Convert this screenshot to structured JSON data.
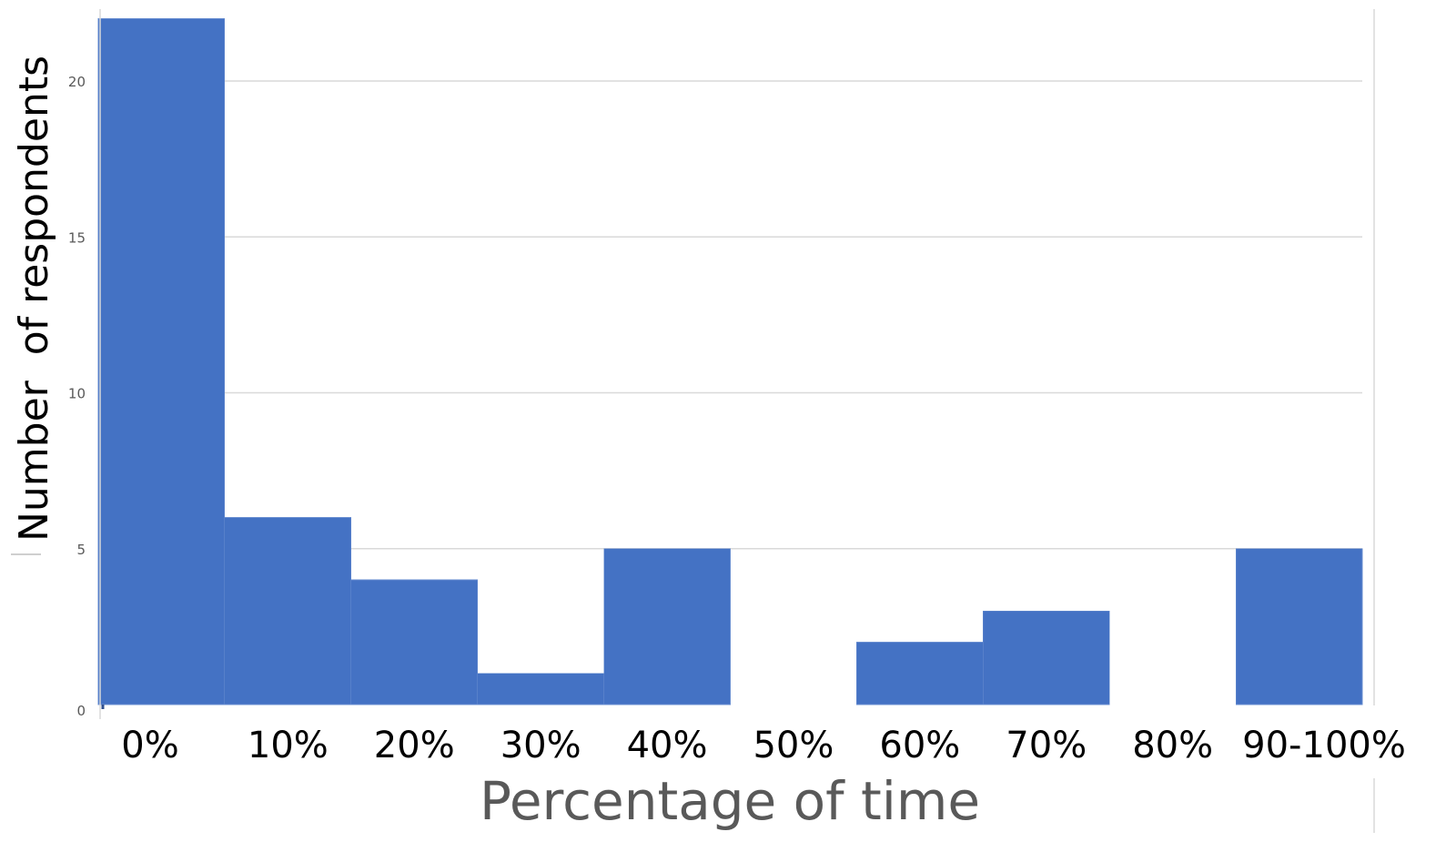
{
  "chart_data": {
    "type": "bar",
    "categories": [
      "0%",
      "10%",
      "20%",
      "30%",
      "40%",
      "50%",
      "60%",
      "70%",
      "80%",
      "90-100%"
    ],
    "values": [
      22,
      6,
      4,
      1,
      5,
      0,
      2,
      3,
      0,
      5
    ],
    "xlabel": "Percentage of time",
    "ylabel": "Number  of respondents",
    "yticks": [
      0,
      5,
      10,
      15,
      20
    ],
    "ylim": [
      0,
      22
    ],
    "grid": true,
    "bar_color": "#4472C4",
    "gridline_color": "#d9d9d9"
  }
}
